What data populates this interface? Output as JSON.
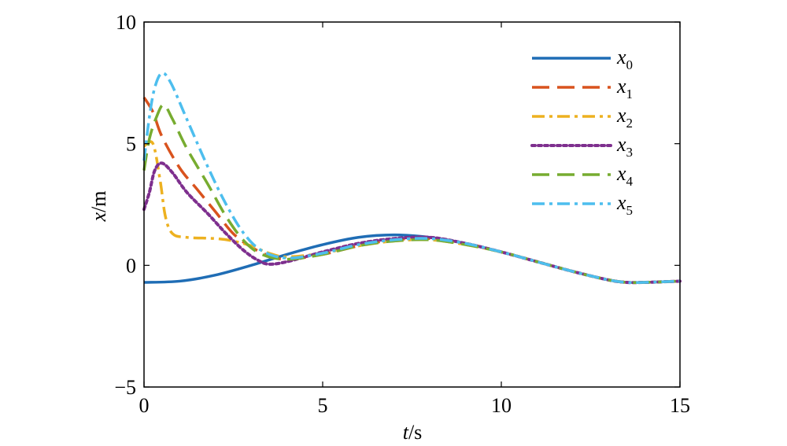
{
  "chart_data": {
    "type": "line",
    "xlabel_var": "t",
    "xlabel_unit": "/s",
    "ylabel_var": "x",
    "ylabel_unit": "/m",
    "xlim": [
      0,
      15
    ],
    "ylim": [
      -5,
      10
    ],
    "xticks": [
      0,
      5,
      10,
      15
    ],
    "yticks": [
      -5,
      0,
      5,
      10
    ],
    "xtick_labels": [
      "0",
      "5",
      "10",
      "15"
    ],
    "ytick_labels": [
      "−5",
      "0",
      "5",
      "10"
    ],
    "grid": false,
    "legend_position": "top-right",
    "series": [
      {
        "name": "x0",
        "base": "x",
        "sub": "0",
        "color": "#1f6db5",
        "dash": "solid",
        "points": [
          [
            0,
            -0.7
          ],
          [
            1,
            -0.65
          ],
          [
            2,
            -0.4
          ],
          [
            3,
            0.0
          ],
          [
            4,
            0.45
          ],
          [
            5,
            0.85
          ],
          [
            6,
            1.15
          ],
          [
            7,
            1.25
          ],
          [
            8,
            1.15
          ],
          [
            9,
            0.9
          ],
          [
            10,
            0.55
          ],
          [
            11,
            0.15
          ],
          [
            12,
            -0.25
          ],
          [
            13,
            -0.6
          ],
          [
            13.5,
            -0.7
          ],
          [
            14,
            -0.7
          ],
          [
            15,
            -0.65
          ]
        ]
      },
      {
        "name": "x1",
        "base": "x",
        "sub": "1",
        "color": "#d9531e",
        "dash": "long-dash",
        "points": [
          [
            0,
            6.9
          ],
          [
            0.25,
            6.3
          ],
          [
            0.5,
            5.3
          ],
          [
            1,
            4.0
          ],
          [
            1.5,
            3.1
          ],
          [
            2,
            2.2
          ],
          [
            2.5,
            1.3
          ],
          [
            3,
            0.75
          ],
          [
            3.5,
            0.4
          ],
          [
            4,
            0.25
          ],
          [
            5,
            0.45
          ],
          [
            6,
            0.8
          ],
          [
            7,
            1.05
          ],
          [
            8,
            1.1
          ],
          [
            9,
            0.9
          ],
          [
            10,
            0.55
          ],
          [
            11,
            0.15
          ],
          [
            12,
            -0.25
          ],
          [
            13,
            -0.6
          ],
          [
            13.5,
            -0.7
          ],
          [
            14,
            -0.7
          ],
          [
            15,
            -0.65
          ]
        ]
      },
      {
        "name": "x2",
        "base": "x",
        "sub": "2",
        "color": "#edb120",
        "dash": "dash-dot",
        "points": [
          [
            0,
            4.9
          ],
          [
            0.25,
            5.0
          ],
          [
            0.45,
            3.5
          ],
          [
            0.6,
            2.0
          ],
          [
            0.8,
            1.3
          ],
          [
            1.2,
            1.15
          ],
          [
            2,
            1.1
          ],
          [
            2.5,
            1.0
          ],
          [
            3,
            0.8
          ],
          [
            3.5,
            0.5
          ],
          [
            4,
            0.35
          ],
          [
            5,
            0.5
          ],
          [
            6,
            0.8
          ],
          [
            7,
            1.0
          ],
          [
            8,
            1.05
          ],
          [
            9,
            0.85
          ],
          [
            10,
            0.55
          ],
          [
            11,
            0.15
          ],
          [
            12,
            -0.25
          ],
          [
            13,
            -0.6
          ],
          [
            13.5,
            -0.7
          ],
          [
            14,
            -0.7
          ],
          [
            15,
            -0.65
          ]
        ]
      },
      {
        "name": "x3",
        "base": "x",
        "sub": "3",
        "color": "#7e2f8e",
        "dash": "dotted",
        "points": [
          [
            0,
            2.3
          ],
          [
            0.15,
            3.0
          ],
          [
            0.3,
            3.9
          ],
          [
            0.5,
            4.2
          ],
          [
            0.8,
            3.8
          ],
          [
            1.2,
            3.0
          ],
          [
            1.8,
            2.1
          ],
          [
            2.3,
            1.3
          ],
          [
            2.8,
            0.6
          ],
          [
            3.2,
            0.2
          ],
          [
            3.5,
            0.05
          ],
          [
            4,
            0.15
          ],
          [
            5,
            0.55
          ],
          [
            6,
            0.9
          ],
          [
            7,
            1.1
          ],
          [
            8,
            1.15
          ],
          [
            9,
            0.9
          ],
          [
            10,
            0.55
          ],
          [
            11,
            0.15
          ],
          [
            12,
            -0.25
          ],
          [
            13,
            -0.6
          ],
          [
            13.5,
            -0.7
          ],
          [
            14,
            -0.7
          ],
          [
            15,
            -0.65
          ]
        ]
      },
      {
        "name": "x4",
        "base": "x",
        "sub": "4",
        "color": "#77ac30",
        "dash": "long-dash",
        "points": [
          [
            0,
            3.9
          ],
          [
            0.15,
            5.2
          ],
          [
            0.35,
            6.1
          ],
          [
            0.55,
            6.6
          ],
          [
            0.8,
            6.0
          ],
          [
            1.2,
            4.8
          ],
          [
            1.8,
            3.3
          ],
          [
            2.3,
            2.0
          ],
          [
            2.8,
            1.0
          ],
          [
            3.3,
            0.45
          ],
          [
            4,
            0.25
          ],
          [
            5,
            0.45
          ],
          [
            6,
            0.8
          ],
          [
            7,
            1.0
          ],
          [
            8,
            1.05
          ],
          [
            9,
            0.85
          ],
          [
            10,
            0.55
          ],
          [
            11,
            0.15
          ],
          [
            12,
            -0.25
          ],
          [
            13,
            -0.6
          ],
          [
            13.5,
            -0.7
          ],
          [
            14,
            -0.7
          ],
          [
            15,
            -0.65
          ]
        ]
      },
      {
        "name": "x5",
        "base": "x",
        "sub": "5",
        "color": "#4dbeee",
        "dash": "dash-dot",
        "points": [
          [
            0,
            4.3
          ],
          [
            0.15,
            6.1
          ],
          [
            0.3,
            7.3
          ],
          [
            0.5,
            7.9
          ],
          [
            0.75,
            7.5
          ],
          [
            1.2,
            6.0
          ],
          [
            1.8,
            4.0
          ],
          [
            2.3,
            2.5
          ],
          [
            2.8,
            1.3
          ],
          [
            3.3,
            0.6
          ],
          [
            4,
            0.3
          ],
          [
            5,
            0.5
          ],
          [
            6,
            0.85
          ],
          [
            7,
            1.05
          ],
          [
            8,
            1.1
          ],
          [
            9,
            0.9
          ],
          [
            10,
            0.55
          ],
          [
            11,
            0.15
          ],
          [
            12,
            -0.25
          ],
          [
            13,
            -0.6
          ],
          [
            13.5,
            -0.7
          ],
          [
            14,
            -0.7
          ],
          [
            15,
            -0.65
          ]
        ]
      }
    ]
  }
}
